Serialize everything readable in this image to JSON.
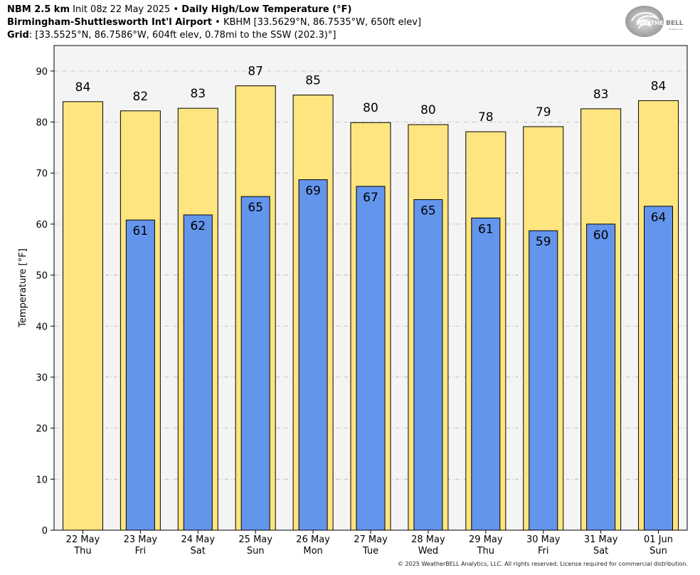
{
  "header": {
    "model": "NBM 2.5 km",
    "init": "Init 08z 22 May 2025",
    "bullet": "•",
    "product": "Daily High/Low Temperature (°F)",
    "station_name": "Birmingham-Shuttlesworth Int'l Airport",
    "station_info": "KBHM [33.5629°N, 86.7535°W, 650ft elev]",
    "grid_label": "Grid",
    "grid_info": ": [33.5525°N, 86.7586°W, 604ft elev, 0.78mi to the SSW (202.3)°]"
  },
  "logo": {
    "text_a": "WEATHER",
    "text_b": "BELL",
    "sub": "Analytics LLC"
  },
  "footer": {
    "copyright": "© 2025 WeatherBELL Analytics, LLC. All rights reserved. License required for commercial distribution."
  },
  "colors": {
    "high": "#ffe57f",
    "low": "#6495ed",
    "plot_bg": "#f4f4f4",
    "grid": "#b0b0b0"
  },
  "chart_data": {
    "type": "bar",
    "title": "Daily High/Low Temperature (°F)",
    "ylabel": "Temperature [°F]",
    "xlabel": "",
    "ylim": [
      0,
      95
    ],
    "yticks": [
      0,
      10,
      20,
      30,
      40,
      50,
      60,
      70,
      80,
      90
    ],
    "grid": true,
    "categories": [
      "22 May",
      "23 May",
      "24 May",
      "25 May",
      "26 May",
      "27 May",
      "28 May",
      "29 May",
      "30 May",
      "31 May",
      "01 Jun"
    ],
    "weekdays": [
      "Thu",
      "Fri",
      "Sat",
      "Sun",
      "Mon",
      "Tue",
      "Wed",
      "Thu",
      "Fri",
      "Sat",
      "Sun"
    ],
    "series": [
      {
        "name": "High",
        "values": [
          84,
          82.2,
          82.7,
          87.1,
          85.3,
          79.9,
          79.5,
          78.1,
          79.1,
          82.6,
          84.2
        ],
        "labels": [
          "84",
          "82",
          "83",
          "87",
          "85",
          "80",
          "80",
          "78",
          "79",
          "83",
          "84"
        ]
      },
      {
        "name": "Low",
        "values": [
          null,
          60.8,
          61.8,
          65.4,
          68.7,
          67.4,
          64.8,
          61.2,
          58.7,
          60,
          63.5
        ],
        "labels": [
          "",
          "61",
          "62",
          "65",
          "69",
          "67",
          "65",
          "61",
          "59",
          "60",
          "64"
        ]
      }
    ]
  }
}
